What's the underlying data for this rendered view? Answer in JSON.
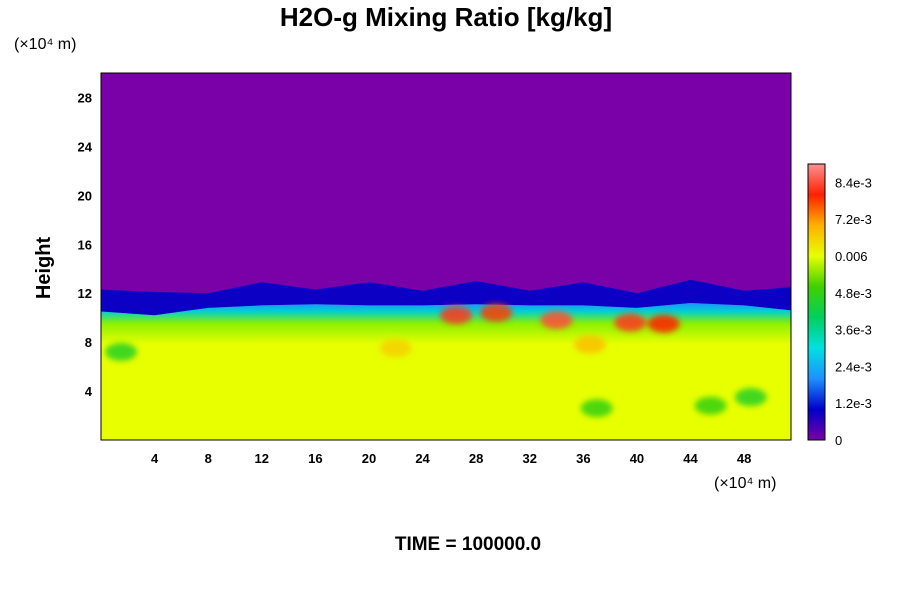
{
  "chart_data": {
    "type": "heatmap",
    "title": "H2O-g Mixing Ratio [kg/kg]",
    "ylabel": "Height",
    "xunit": "(×10⁴ m)",
    "yunit": "(×10⁴ m)",
    "xlim": [
      0,
      51.5
    ],
    "ylim": [
      0,
      30
    ],
    "xticks": [
      4,
      8,
      12,
      16,
      20,
      24,
      28,
      32,
      36,
      40,
      44,
      48
    ],
    "yticks": [
      4,
      8,
      12,
      16,
      20,
      24,
      28
    ],
    "value_range": [
      0,
      0.009
    ],
    "colorbar_ticks": [
      {
        "label": "0",
        "value": 0
      },
      {
        "label": "1.2e-3",
        "value": 0.0012
      },
      {
        "label": "2.4e-3",
        "value": 0.0024
      },
      {
        "label": "3.6e-3",
        "value": 0.0036
      },
      {
        "label": "4.8e-3",
        "value": 0.0048
      },
      {
        "label": "0.006",
        "value": 0.006
      },
      {
        "label": "7.2e-3",
        "value": 0.0072
      },
      {
        "label": "8.4e-3",
        "value": 0.0084
      }
    ],
    "colorbar_stops": [
      "#7a00a8",
      "#0000c8",
      "#1e90ff",
      "#00e0e0",
      "#00d060",
      "#40d000",
      "#e8ff00",
      "#ffb000",
      "#ff2000",
      "#ff9090"
    ],
    "field": {
      "background_value": 0.0,
      "lower_layer_value": 0.0058,
      "moist_layer_top": [
        {
          "x": 0,
          "y": 10.5
        },
        {
          "x": 4,
          "y": 10.2
        },
        {
          "x": 8,
          "y": 10.8
        },
        {
          "x": 12,
          "y": 11.0
        },
        {
          "x": 16,
          "y": 11.1
        },
        {
          "x": 20,
          "y": 11.0
        },
        {
          "x": 24,
          "y": 11.0
        },
        {
          "x": 28,
          "y": 11.1
        },
        {
          "x": 32,
          "y": 11.0
        },
        {
          "x": 36,
          "y": 11.0
        },
        {
          "x": 40,
          "y": 10.8
        },
        {
          "x": 44,
          "y": 11.2
        },
        {
          "x": 48,
          "y": 11.0
        },
        {
          "x": 51.5,
          "y": 10.6
        }
      ],
      "patches": [
        {
          "x": 26.5,
          "y": 10.2,
          "value": 0.0082
        },
        {
          "x": 29.5,
          "y": 10.4,
          "value": 0.0078
        },
        {
          "x": 34.0,
          "y": 9.8,
          "value": 0.0084
        },
        {
          "x": 36.5,
          "y": 7.8,
          "value": 0.0068
        },
        {
          "x": 39.5,
          "y": 9.6,
          "value": 0.0082
        },
        {
          "x": 42.0,
          "y": 9.5,
          "value": 0.008
        },
        {
          "x": 22.0,
          "y": 7.5,
          "value": 0.0066
        },
        {
          "x": 1.5,
          "y": 7.2,
          "value": 0.0046
        },
        {
          "x": 37.0,
          "y": 2.6,
          "value": 0.0048
        },
        {
          "x": 45.5,
          "y": 2.8,
          "value": 0.0048
        },
        {
          "x": 48.5,
          "y": 3.5,
          "value": 0.0046
        }
      ]
    }
  },
  "footer": {
    "time_label": "TIME = 100000.0"
  }
}
